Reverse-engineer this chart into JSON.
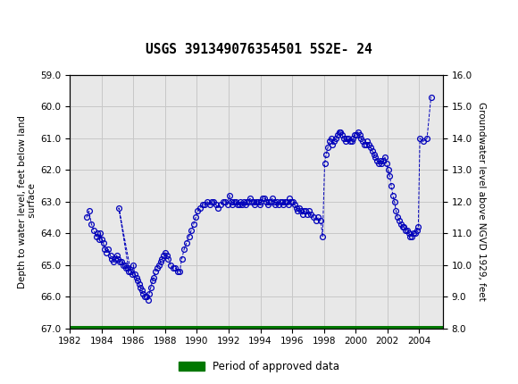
{
  "title": "USGS 391349076354501 5S2E- 24",
  "ylabel_left": "Depth to water level, feet below land\n surface",
  "ylabel_right": "Groundwater level above NGVD 1929, feet",
  "ylim_left": [
    67.0,
    59.0
  ],
  "ylim_right": [
    8.0,
    16.0
  ],
  "xlim": [
    1982,
    2005.5
  ],
  "yticks_left": [
    59.0,
    60.0,
    61.0,
    62.0,
    63.0,
    64.0,
    65.0,
    66.0,
    67.0
  ],
  "yticks_right": [
    8.0,
    9.0,
    10.0,
    11.0,
    12.0,
    13.0,
    14.0,
    15.0,
    16.0
  ],
  "xticks": [
    1982,
    1984,
    1986,
    1988,
    1990,
    1992,
    1994,
    1996,
    1998,
    2000,
    2002,
    2004
  ],
  "header_bg": "#1a6b3c",
  "grid_color": "#c8c8c8",
  "plot_bg": "#e8e8e8",
  "line_color": "#0000bb",
  "marker_color": "#0000bb",
  "approved_bar_color": "#007700",
  "legend_label": "Period of approved data",
  "data_x": [
    1983.05,
    1983.2,
    1983.35,
    1983.5,
    1983.65,
    1983.75,
    1983.85,
    1983.92,
    1984.0,
    1984.1,
    1984.2,
    1984.3,
    1984.42,
    1984.55,
    1984.65,
    1984.75,
    1984.85,
    1984.95,
    1985.05,
    1985.15,
    1985.25,
    1985.35,
    1985.45,
    1985.55,
    1985.65,
    1985.72,
    1985.08,
    1985.83,
    1985.92,
    1986.0,
    1986.08,
    1986.18,
    1986.28,
    1986.35,
    1986.45,
    1986.52,
    1986.6,
    1986.72,
    1986.82,
    1986.92,
    1987.0,
    1987.1,
    1987.2,
    1987.28,
    1987.38,
    1987.48,
    1987.6,
    1987.7,
    1987.8,
    1987.9,
    1988.0,
    1988.1,
    1988.2,
    1988.35,
    1988.5,
    1988.65,
    1988.8,
    1988.92,
    1989.05,
    1989.2,
    1989.35,
    1989.5,
    1989.65,
    1989.8,
    1989.92,
    1990.05,
    1990.2,
    1990.35,
    1990.5,
    1990.65,
    1990.8,
    1990.92,
    1991.05,
    1991.2,
    1991.35,
    1991.5,
    1991.65,
    1991.8,
    1991.92,
    1992.05,
    1992.15,
    1992.25,
    1992.35,
    1992.45,
    1992.55,
    1992.65,
    1992.75,
    1992.85,
    1992.95,
    1993.05,
    1993.15,
    1993.25,
    1993.35,
    1993.45,
    1993.55,
    1993.65,
    1993.75,
    1993.85,
    1993.95,
    1994.05,
    1994.15,
    1994.25,
    1994.35,
    1994.45,
    1994.55,
    1994.65,
    1994.75,
    1994.85,
    1994.95,
    1995.05,
    1995.15,
    1995.25,
    1995.35,
    1995.45,
    1995.55,
    1995.65,
    1995.75,
    1995.85,
    1995.95,
    1996.05,
    1996.15,
    1996.25,
    1996.35,
    1996.45,
    1996.55,
    1996.65,
    1996.75,
    1996.85,
    1996.95,
    1997.05,
    1997.2,
    1997.35,
    1997.5,
    1997.65,
    1997.8,
    1997.92,
    1998.05,
    1998.15,
    1998.25,
    1998.35,
    1998.45,
    1998.55,
    1998.65,
    1998.75,
    1998.85,
    1998.95,
    1999.05,
    1999.15,
    1999.25,
    1999.35,
    1999.45,
    1999.55,
    1999.65,
    1999.75,
    1999.85,
    1999.95,
    2000.05,
    2000.15,
    2000.25,
    2000.35,
    2000.45,
    2000.55,
    2000.65,
    2000.75,
    2000.85,
    2000.95,
    2001.05,
    2001.15,
    2001.25,
    2001.35,
    2001.45,
    2001.55,
    2001.65,
    2001.75,
    2001.85,
    2001.95,
    2002.05,
    2002.15,
    2002.25,
    2002.35,
    2002.45,
    2002.55,
    2002.65,
    2002.75,
    2002.85,
    2002.95,
    2003.05,
    2003.15,
    2003.25,
    2003.35,
    2003.45,
    2003.55,
    2003.65,
    2003.75,
    2003.85,
    2003.95,
    2004.05,
    2004.25,
    2004.5,
    2004.75
  ],
  "data_y": [
    63.5,
    63.3,
    63.7,
    63.9,
    64.1,
    64.0,
    64.2,
    64.0,
    64.2,
    64.3,
    64.5,
    64.6,
    64.5,
    64.7,
    64.8,
    64.9,
    64.8,
    64.7,
    64.8,
    64.9,
    64.9,
    65.0,
    65.0,
    65.1,
    65.1,
    65.2,
    63.2,
    65.2,
    65.3,
    65.0,
    65.3,
    65.4,
    65.5,
    65.6,
    65.7,
    65.8,
    65.9,
    66.0,
    66.0,
    66.1,
    65.9,
    65.7,
    65.5,
    65.4,
    65.2,
    65.1,
    65.0,
    64.9,
    64.8,
    64.7,
    64.6,
    64.7,
    64.8,
    65.0,
    65.1,
    65.1,
    65.2,
    65.2,
    64.8,
    64.5,
    64.3,
    64.1,
    63.9,
    63.7,
    63.5,
    63.3,
    63.2,
    63.1,
    63.1,
    63.0,
    63.1,
    63.0,
    63.0,
    63.1,
    63.2,
    63.1,
    63.0,
    63.0,
    63.1,
    62.8,
    63.0,
    63.1,
    63.0,
    63.0,
    63.1,
    63.1,
    63.0,
    63.1,
    63.0,
    63.1,
    63.0,
    63.0,
    62.9,
    63.0,
    63.0,
    63.1,
    63.0,
    63.0,
    63.1,
    63.0,
    62.9,
    62.9,
    63.0,
    63.1,
    63.0,
    63.0,
    62.9,
    63.0,
    63.1,
    63.0,
    63.1,
    63.0,
    63.0,
    63.1,
    63.0,
    63.0,
    63.1,
    62.9,
    63.0,
    63.0,
    63.1,
    63.2,
    63.3,
    63.2,
    63.3,
    63.4,
    63.3,
    63.3,
    63.4,
    63.3,
    63.4,
    63.5,
    63.6,
    63.5,
    63.6,
    64.1,
    61.8,
    61.5,
    61.3,
    61.1,
    61.0,
    61.2,
    61.1,
    61.0,
    60.9,
    60.8,
    60.8,
    60.9,
    61.0,
    61.1,
    61.0,
    61.0,
    61.1,
    61.1,
    61.0,
    60.9,
    60.9,
    60.8,
    60.9,
    61.0,
    61.1,
    61.2,
    61.2,
    61.1,
    61.2,
    61.3,
    61.4,
    61.5,
    61.6,
    61.7,
    61.8,
    61.7,
    61.8,
    61.7,
    61.6,
    61.8,
    62.0,
    62.2,
    62.5,
    62.8,
    63.0,
    63.3,
    63.5,
    63.6,
    63.7,
    63.8,
    63.8,
    63.9,
    63.9,
    64.0,
    64.1,
    64.1,
    64.0,
    64.0,
    63.9,
    63.8,
    61.0,
    61.1,
    61.0,
    59.7
  ]
}
